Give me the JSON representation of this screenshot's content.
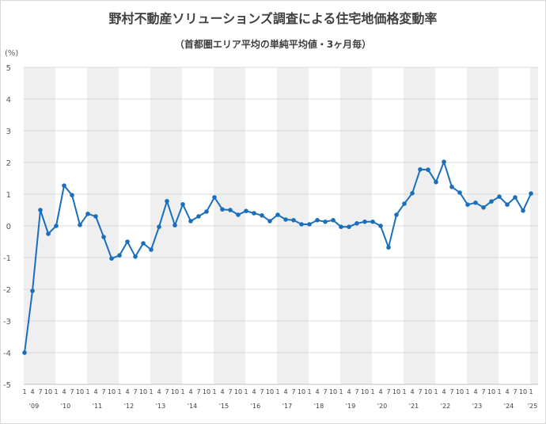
{
  "chart_data": {
    "type": "line",
    "title": "野村不動産ソリューションズ調査による住宅地価格変動率",
    "subtitle": "（首都圏エリア平均の単純平均値・3ヶ月毎）",
    "y_unit_label": "(%)",
    "ylim": [
      -5,
      5
    ],
    "y_ticks": [
      "5",
      "4",
      "3",
      "2",
      "1",
      "0",
      "-1",
      "-2",
      "-3",
      "-4",
      "-5"
    ],
    "y_tick_values": [
      5,
      4,
      3,
      2,
      1,
      0,
      -1,
      -2,
      -3,
      -4,
      -5
    ],
    "grid": true,
    "legend": "none",
    "colors": {
      "line": "#1a6fbd",
      "band": "#efefef",
      "grid": "#d9d9d9"
    },
    "years": [
      "'09",
      "'10",
      "'11",
      "'12",
      "'13",
      "'14",
      "'15",
      "'16",
      "'17",
      "'18",
      "'19",
      "'20",
      "'21",
      "'22",
      "'23",
      "'24",
      "'25"
    ],
    "quarter_labels": [
      "1",
      "4",
      "7",
      "10"
    ],
    "x": [
      "2009-01",
      "2009-04",
      "2009-07",
      "2009-10",
      "2010-01",
      "2010-04",
      "2010-07",
      "2010-10",
      "2011-01",
      "2011-04",
      "2011-07",
      "2011-10",
      "2012-01",
      "2012-04",
      "2012-07",
      "2012-10",
      "2013-01",
      "2013-04",
      "2013-07",
      "2013-10",
      "2014-01",
      "2014-04",
      "2014-07",
      "2014-10",
      "2015-01",
      "2015-04",
      "2015-07",
      "2015-10",
      "2016-01",
      "2016-04",
      "2016-07",
      "2016-10",
      "2017-01",
      "2017-04",
      "2017-07",
      "2017-10",
      "2018-01",
      "2018-04",
      "2018-07",
      "2018-10",
      "2019-01",
      "2019-04",
      "2019-07",
      "2019-10",
      "2020-01",
      "2020-04",
      "2020-07",
      "2020-10",
      "2021-01",
      "2021-04",
      "2021-07",
      "2021-10",
      "2022-01",
      "2022-04",
      "2022-07",
      "2022-10",
      "2023-01",
      "2023-04",
      "2023-07",
      "2023-10",
      "2024-01",
      "2024-04",
      "2024-07",
      "2024-10",
      "2025-01"
    ],
    "values": [
      -4.0,
      -2.05,
      0.5,
      -0.25,
      0.0,
      1.27,
      0.97,
      0.03,
      0.38,
      0.3,
      -0.35,
      -1.03,
      -0.93,
      -0.5,
      -0.97,
      -0.55,
      -0.75,
      -0.03,
      0.78,
      0.02,
      0.68,
      0.15,
      0.3,
      0.45,
      0.9,
      0.52,
      0.5,
      0.35,
      0.47,
      0.4,
      0.33,
      0.15,
      0.35,
      0.2,
      0.18,
      0.05,
      0.05,
      0.18,
      0.13,
      0.18,
      -0.03,
      -0.03,
      0.08,
      0.13,
      0.13,
      0.0,
      -0.68,
      0.35,
      0.7,
      1.03,
      1.78,
      1.77,
      1.38,
      2.02,
      1.23,
      1.05,
      0.67,
      0.73,
      0.58,
      0.77,
      0.92,
      0.67,
      0.9,
      0.48,
      1.02
    ]
  }
}
